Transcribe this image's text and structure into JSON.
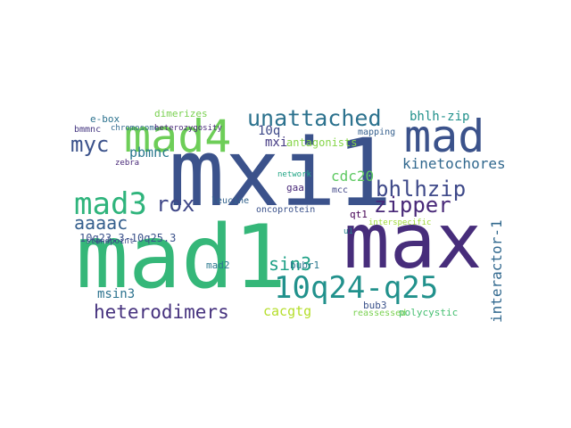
{
  "words": [
    {
      "text": "mxi1",
      "color": "#3b528b"
    },
    {
      "text": "mad1",
      "color": "#35b779"
    },
    {
      "text": "max",
      "color": "#472d7b"
    },
    {
      "text": "mad",
      "color": "#3b528b"
    },
    {
      "text": "mad4",
      "color": "#6ece58"
    },
    {
      "text": "10q24-q25",
      "color": "#21918c"
    },
    {
      "text": "mad3",
      "color": "#2fb47c"
    },
    {
      "text": "unattached",
      "color": "#2c728e"
    },
    {
      "text": "heterodimers",
      "color": "#46327e"
    },
    {
      "text": "zipper",
      "color": "#482878"
    },
    {
      "text": "bhlhzip",
      "color": "#3e4989"
    },
    {
      "text": "myc",
      "color": "#3b528b"
    },
    {
      "text": "rox",
      "color": "#3f4788"
    },
    {
      "text": "aaaac",
      "color": "#355f8d"
    },
    {
      "text": "sin3",
      "color": "#1fa187"
    },
    {
      "text": "kinetochores",
      "color": "#31688e"
    },
    {
      "text": "bhlh-zip",
      "color": "#21918c"
    },
    {
      "text": "interactor-1",
      "color": "#31688e"
    },
    {
      "text": "cdc20",
      "color": "#5ec962"
    },
    {
      "text": "pbmnc",
      "color": "#2a788e"
    },
    {
      "text": "10q",
      "color": "#3e4989"
    },
    {
      "text": "mxi",
      "color": "#443983"
    },
    {
      "text": "msin3",
      "color": "#2c728e"
    },
    {
      "text": "cacgtg",
      "color": "#b5de2b"
    },
    {
      "text": "bubr1",
      "color": "#2a788e"
    },
    {
      "text": "10q23.3-10q25.3",
      "color": "#3b528b"
    },
    {
      "text": "antagonists",
      "color": "#86d549"
    },
    {
      "text": "e-box",
      "color": "#2c728e"
    },
    {
      "text": "dimerizes",
      "color": "#7ad151"
    },
    {
      "text": "chromosome",
      "color": "#31688e"
    },
    {
      "text": "bmmnc",
      "color": "#453781"
    },
    {
      "text": "mapping",
      "color": "#355f8d"
    },
    {
      "text": "heterozygosity",
      "color": "#482878"
    },
    {
      "text": "leucine",
      "color": "#33638d"
    },
    {
      "text": "oncoprotein",
      "color": "#3b528b"
    },
    {
      "text": "mcc",
      "color": "#404688"
    },
    {
      "text": "gaa",
      "color": "#482878"
    },
    {
      "text": "network",
      "color": "#21a585"
    },
    {
      "text": "qt1",
      "color": "#440154"
    },
    {
      "text": "interspecific",
      "color": "#a0da39"
    },
    {
      "text": "polycystic",
      "color": "#44bf70"
    },
    {
      "text": "bub3",
      "color": "#3b528b"
    },
    {
      "text": "mad2",
      "color": "#2a788e"
    },
    {
      "text": "reassessed",
      "color": "#7ad151"
    },
    {
      "text": "zebra",
      "color": "#482878"
    },
    {
      "text": "standpoint",
      "color": "#3e4989"
    },
    {
      "text": "u1",
      "color": "#26828e"
    }
  ]
}
